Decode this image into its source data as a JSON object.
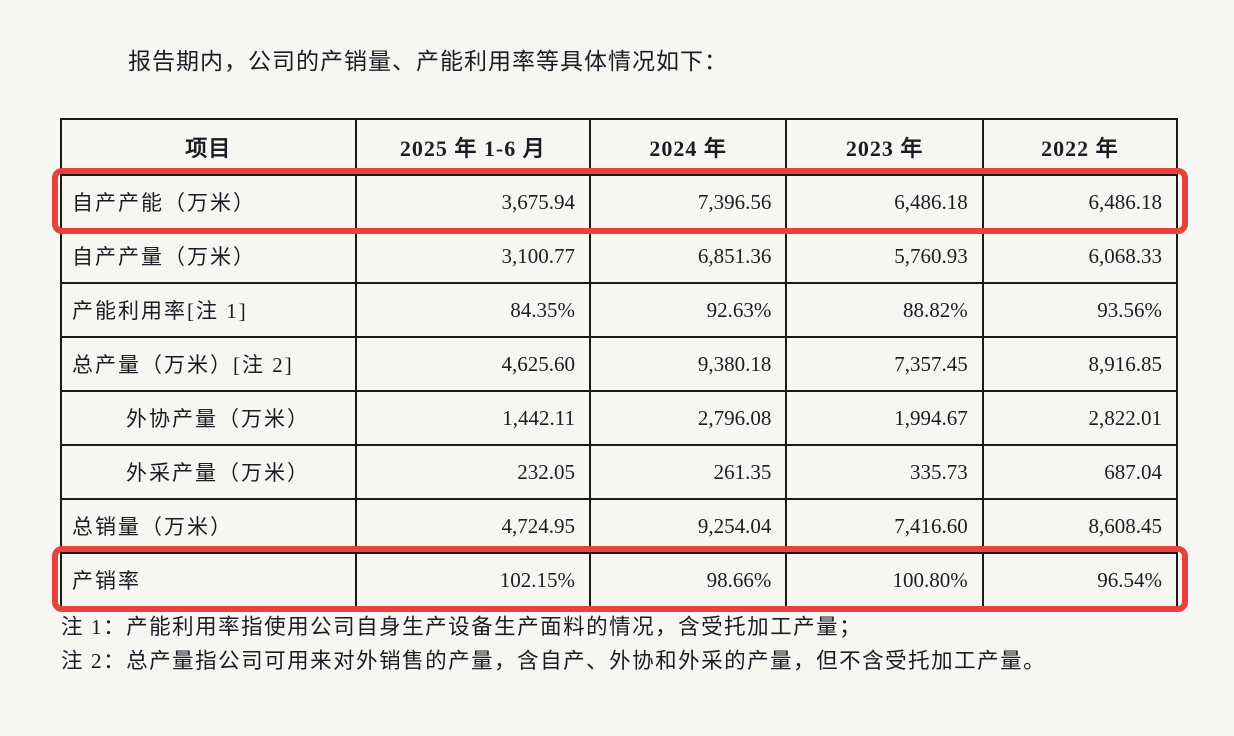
{
  "intro_text": "报告期内，公司的产销量、产能利用率等具体情况如下：",
  "table": {
    "headers": [
      "项目",
      "2025 年 1-6 月",
      "2024 年",
      "2023 年",
      "2022 年"
    ],
    "rows": [
      {
        "label": "自产产能（万米）",
        "values": [
          "3,675.94",
          "7,396.56",
          "6,486.18",
          "6,486.18"
        ],
        "highlighted": true,
        "indent": false
      },
      {
        "label": "自产产量（万米）",
        "values": [
          "3,100.77",
          "6,851.36",
          "5,760.93",
          "6,068.33"
        ],
        "highlighted": false,
        "indent": false
      },
      {
        "label": "产能利用率[注 1]",
        "values": [
          "84.35%",
          "92.63%",
          "88.82%",
          "93.56%"
        ],
        "highlighted": false,
        "indent": false
      },
      {
        "label": "总产量（万米）[注 2]",
        "values": [
          "4,625.60",
          "9,380.18",
          "7,357.45",
          "8,916.85"
        ],
        "highlighted": false,
        "indent": false
      },
      {
        "label": "外协产量（万米）",
        "values": [
          "1,442.11",
          "2,796.08",
          "1,994.67",
          "2,822.01"
        ],
        "highlighted": false,
        "indent": true
      },
      {
        "label": "外采产量（万米）",
        "values": [
          "232.05",
          "261.35",
          "335.73",
          "687.04"
        ],
        "highlighted": false,
        "indent": true
      },
      {
        "label": "总销量（万米）",
        "values": [
          "4,724.95",
          "9,254.04",
          "7,416.60",
          "8,608.45"
        ],
        "highlighted": false,
        "indent": false
      },
      {
        "label": "产销率",
        "values": [
          "102.15%",
          "98.66%",
          "100.80%",
          "96.54%"
        ],
        "highlighted": true,
        "indent": false
      }
    ]
  },
  "notes": [
    "注 1：产能利用率指使用公司自身生产设备生产面料的情况，含受托加工产量；",
    "注 2：总产量指公司可用来对外销售的产量，含自产、外协和外采的产量，但不含受托加工产量。"
  ],
  "colors": {
    "highlight_red": "#e8423c",
    "text": "#1d1d26",
    "border": "#1a1a1a",
    "background": "#f6f6f3"
  }
}
